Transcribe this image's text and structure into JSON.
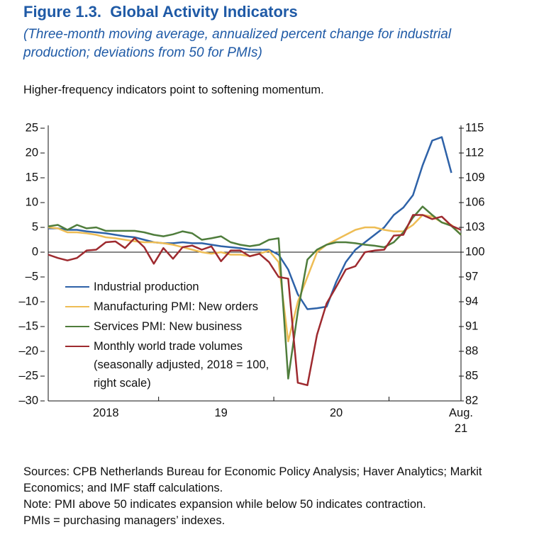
{
  "chart_data": {
    "type": "line",
    "title": "Figure 1.3.  Global Activity Indicators",
    "subtitle": "(Three-month moving average, annualized percent change for industrial production; deviations from 50 for PMIs)",
    "annotation": "Higher-frequency indicators point to softening momentum.",
    "categories": [
      null,
      null,
      null,
      null,
      null,
      null,
      "2018",
      null,
      null,
      null,
      null,
      null,
      null,
      null,
      null,
      null,
      null,
      null,
      "19",
      null,
      null,
      null,
      null,
      null,
      null,
      null,
      null,
      null,
      null,
      null,
      "20",
      null,
      null,
      null,
      null,
      null,
      null,
      null,
      null,
      null,
      null,
      null,
      null,
      "Aug. 21"
    ],
    "series": [
      {
        "name": "Industrial production",
        "color": "#2e62a8",
        "values": [
          4.8,
          4.8,
          4.5,
          4.5,
          4.2,
          4,
          3.8,
          3.5,
          3.2,
          3,
          2.5,
          2,
          1.8,
          1.8,
          2,
          1.8,
          1.8,
          1.5,
          1.2,
          1,
          0.8,
          0.5,
          0.5,
          0.5,
          -0.5,
          -3.5,
          -8.5,
          -11.5,
          -11.3,
          -11,
          -6,
          -2,
          0.5,
          2,
          3.5,
          5,
          7.5,
          9,
          11.5,
          17.5,
          22.5,
          23.2,
          16,
          null
        ]
      },
      {
        "name": "Manufacturing PMI: New orders",
        "color": "#eebd55",
        "values": [
          5,
          4.8,
          4,
          4,
          3.8,
          3.5,
          3,
          2.8,
          2.5,
          2.2,
          2,
          2,
          1.8,
          1.5,
          1,
          0.5,
          0,
          -0.3,
          0,
          -0.5,
          -0.5,
          -0.8,
          -0.3,
          0.3,
          -2,
          -18,
          -10,
          -5,
          0,
          1.5,
          2.5,
          3.5,
          4.5,
          5,
          5,
          4.5,
          4.2,
          4.2,
          5.5,
          7.5,
          7.2,
          6,
          5.5,
          3.5
        ]
      },
      {
        "name": "Services PMI: New business",
        "color": "#4f7d3c",
        "values": [
          5.2,
          5.5,
          4.5,
          5.5,
          4.8,
          5,
          4.3,
          4.3,
          4.3,
          4.3,
          4,
          3.5,
          3.2,
          3.6,
          4.2,
          3.8,
          2.5,
          2.8,
          3.2,
          2,
          1.5,
          1.2,
          1.5,
          2.5,
          2.8,
          -25.5,
          -12,
          -1.5,
          0.5,
          1.5,
          2,
          2,
          1.8,
          1.5,
          1.3,
          1,
          2,
          4,
          7,
          9.2,
          7.5,
          6,
          5.3,
          3.5
        ]
      },
      {
        "name": "Monthly world trade volumes (seasonally adjusted, 2018 = 100, right scale)",
        "color": "#9e2a2f",
        "axis": "y2",
        "values": [
          99.7,
          99.3,
          99,
          99.3,
          100.2,
          100.3,
          101.2,
          101.3,
          100.5,
          101.7,
          100.6,
          98.6,
          100.5,
          99.2,
          100.6,
          100.8,
          100.3,
          100.7,
          98.9,
          100.2,
          100.2,
          99.5,
          99.8,
          98.8,
          97,
          96.8,
          84.2,
          83.9,
          90,
          93.8,
          95.8,
          97.9,
          98.3,
          100,
          100.2,
          100.3,
          102,
          102.1,
          104.5,
          104.5,
          104,
          104.3,
          103.2,
          102.7
        ]
      }
    ],
    "ylim": [
      -30,
      25
    ],
    "yticks": [
      {
        "value": -30,
        "label": "–30"
      },
      {
        "value": -25,
        "label": "–25"
      },
      {
        "value": -20,
        "label": "–20"
      },
      {
        "value": -15,
        "label": "–15"
      },
      {
        "value": -10,
        "label": "–10"
      },
      {
        "value": -5,
        "label": "–5"
      },
      0,
      5,
      10,
      15,
      20,
      25
    ],
    "y2lim": [
      82,
      115
    ],
    "y2ticks": [
      82,
      85,
      88,
      91,
      94,
      97,
      100,
      103,
      106,
      109,
      112,
      115
    ],
    "legend": "lower left",
    "footnotes": [
      "Sources: CPB Netherlands Bureau for Economic Policy Analysis; Haver Analytics; Markit Economics; and IMF staff calculations.",
      "Note: PMI above 50 indicates expansion while below 50 indicates contraction.",
      "PMIs = purchasing managers’ indexes."
    ]
  }
}
